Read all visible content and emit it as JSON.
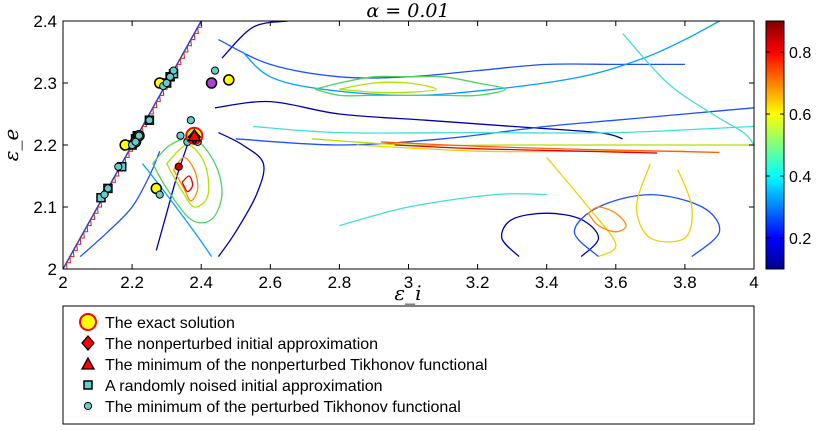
{
  "chart_data": {
    "type": "contour",
    "title": "α = 0.01",
    "xlabel": "ε_i",
    "ylabel": "ε_e",
    "xlim": [
      2,
      4
    ],
    "ylim": [
      2,
      2.4
    ],
    "xticks": [
      "2",
      "2.2",
      "2.4",
      "2.6",
      "2.8",
      "3",
      "3.2",
      "3.4",
      "3.6",
      "3.8",
      "4"
    ],
    "yticks": [
      "2",
      "2.1",
      "2.2",
      "2.3",
      "2.4"
    ],
    "colorbar": {
      "range": [
        0.1,
        0.9
      ],
      "ticks": [
        "0.2",
        "0.4",
        "0.6",
        "0.8"
      ],
      "colormap": "jet"
    },
    "contours": [
      {
        "level": 0.1,
        "color": "#0000b0",
        "points": [
          [
            2.27,
            2.03
          ],
          [
            2.3,
            2.09
          ],
          [
            2.33,
            2.15
          ],
          [
            2.36,
            2.2
          ]
        ]
      },
      {
        "level": 0.1,
        "color": "#0000b0",
        "points": [
          [
            2.45,
            2.02
          ],
          [
            2.5,
            2.06
          ],
          [
            2.56,
            2.12
          ],
          [
            2.58,
            2.17
          ],
          [
            2.52,
            2.2
          ],
          [
            2.45,
            2.22
          ]
        ]
      },
      {
        "level": 0.1,
        "color": "#0000b0",
        "points": [
          [
            2.46,
            2.34
          ],
          [
            2.55,
            2.39
          ],
          [
            2.65,
            2.4
          ]
        ]
      },
      {
        "level": 0.1,
        "color": "#0000b0",
        "points": [
          [
            2.44,
            2.26
          ],
          [
            2.6,
            2.27
          ],
          [
            2.8,
            2.25
          ],
          [
            3.05,
            2.24
          ],
          [
            3.3,
            2.23
          ],
          [
            3.55,
            2.22
          ],
          [
            3.62,
            2.21
          ]
        ]
      },
      {
        "level": 0.1,
        "color": "#0000b0",
        "points": [
          [
            3.32,
            2.02
          ],
          [
            3.27,
            2.05
          ],
          [
            3.3,
            2.08
          ],
          [
            3.4,
            2.09
          ],
          [
            3.5,
            2.08
          ],
          [
            3.55,
            2.05
          ],
          [
            3.5,
            2.02
          ]
        ]
      },
      {
        "level": 0.2,
        "color": "#1e50ff",
        "points": [
          [
            2.05,
            2.02
          ],
          [
            2.13,
            2.06
          ],
          [
            2.2,
            2.1
          ],
          [
            2.25,
            2.15
          ],
          [
            2.28,
            2.19
          ]
        ]
      },
      {
        "level": 0.2,
        "color": "#1e50ff",
        "points": [
          [
            2.45,
            2.37
          ],
          [
            2.6,
            2.33
          ],
          [
            2.8,
            2.31
          ],
          [
            3.0,
            2.31
          ],
          [
            3.2,
            2.32
          ],
          [
            3.4,
            2.33
          ],
          [
            3.6,
            2.33
          ],
          [
            3.8,
            2.33
          ]
        ]
      },
      {
        "level": 0.2,
        "color": "#1e50ff",
        "points": [
          [
            2.5,
            2.21
          ],
          [
            2.8,
            2.2
          ],
          [
            3.1,
            2.21
          ],
          [
            3.4,
            2.23
          ],
          [
            3.6,
            2.24
          ],
          [
            3.8,
            2.25
          ],
          [
            4.0,
            2.26
          ]
        ]
      },
      {
        "level": 0.2,
        "color": "#1e50ff",
        "points": [
          [
            3.55,
            2.02
          ],
          [
            3.48,
            2.06
          ],
          [
            3.55,
            2.1
          ],
          [
            3.7,
            2.12
          ],
          [
            3.85,
            2.1
          ],
          [
            3.9,
            2.06
          ],
          [
            3.82,
            2.02
          ]
        ]
      },
      {
        "level": 0.3,
        "color": "#00a0ff",
        "points": [
          [
            2.23,
            2.17
          ],
          [
            2.3,
            2.12
          ],
          [
            2.38,
            2.06
          ],
          [
            2.43,
            2.02
          ]
        ]
      },
      {
        "level": 0.3,
        "color": "#00a0ff",
        "points": [
          [
            2.52,
            2.35
          ],
          [
            2.6,
            2.31
          ],
          [
            2.75,
            2.29
          ],
          [
            3.0,
            2.28
          ],
          [
            3.25,
            2.29
          ],
          [
            3.5,
            2.31
          ],
          [
            3.68,
            2.34
          ],
          [
            3.8,
            2.37
          ],
          [
            3.9,
            2.4
          ]
        ]
      },
      {
        "level": 0.35,
        "color": "#40e0d0",
        "points": [
          [
            2.55,
            2.23
          ],
          [
            2.8,
            2.22
          ],
          [
            3.2,
            2.22
          ],
          [
            3.6,
            2.22
          ],
          [
            4.0,
            2.23
          ]
        ]
      },
      {
        "level": 0.35,
        "color": "#40e0d0",
        "points": [
          [
            3.62,
            2.38
          ],
          [
            3.75,
            2.3
          ],
          [
            3.88,
            2.25
          ],
          [
            3.97,
            2.22
          ],
          [
            4.0,
            2.2
          ]
        ]
      },
      {
        "level": 0.35,
        "color": "#40e0d0",
        "points": [
          [
            2.8,
            2.07
          ],
          [
            3.0,
            2.1
          ],
          [
            3.25,
            2.12
          ],
          [
            3.4,
            2.12
          ]
        ]
      },
      {
        "level": 0.45,
        "color": "#50d060",
        "points": [
          [
            2.26,
            2.17
          ],
          [
            2.3,
            2.13
          ],
          [
            2.37,
            2.08
          ],
          [
            2.43,
            2.08
          ],
          [
            2.46,
            2.12
          ],
          [
            2.44,
            2.17
          ],
          [
            2.38,
            2.21
          ],
          [
            2.31,
            2.2
          ],
          [
            2.26,
            2.17
          ]
        ]
      },
      {
        "level": 0.45,
        "color": "#50d060",
        "points": [
          [
            2.73,
            2.29
          ],
          [
            2.8,
            2.28
          ],
          [
            2.9,
            2.28
          ],
          [
            3.0,
            2.28
          ],
          [
            3.1,
            2.28
          ],
          [
            3.2,
            2.28
          ],
          [
            3.28,
            2.29
          ],
          [
            3.2,
            2.3
          ],
          [
            3.1,
            2.31
          ],
          [
            3.0,
            2.31
          ],
          [
            2.9,
            2.31
          ],
          [
            2.8,
            2.3
          ],
          [
            2.73,
            2.29
          ]
        ]
      },
      {
        "level": 0.55,
        "color": "#b0e000",
        "points": [
          [
            2.8,
            2.29
          ],
          [
            2.9,
            2.285
          ],
          [
            3.0,
            2.285
          ],
          [
            3.08,
            2.29
          ],
          [
            3.0,
            2.3
          ],
          [
            2.9,
            2.3
          ],
          [
            2.8,
            2.29
          ]
        ]
      },
      {
        "level": 0.55,
        "color": "#b0e000",
        "points": [
          [
            2.3,
            2.17
          ],
          [
            2.34,
            2.13
          ],
          [
            2.38,
            2.1
          ],
          [
            2.42,
            2.12
          ],
          [
            2.41,
            2.17
          ],
          [
            2.36,
            2.2
          ],
          [
            2.3,
            2.17
          ]
        ]
      },
      {
        "level": 0.55,
        "color": "#b0e000",
        "points": [
          [
            2.72,
            2.21
          ],
          [
            3.0,
            2.2
          ],
          [
            3.3,
            2.2
          ],
          [
            3.6,
            2.2
          ],
          [
            3.9,
            2.2
          ],
          [
            4.0,
            2.2
          ]
        ]
      },
      {
        "level": 0.6,
        "color": "#f0d000",
        "points": [
          [
            2.85,
            2.2
          ],
          [
            3.2,
            2.19
          ],
          [
            3.5,
            2.19
          ],
          [
            3.8,
            2.19
          ]
        ]
      },
      {
        "level": 0.6,
        "color": "#f0d000",
        "points": [
          [
            3.4,
            2.18
          ],
          [
            3.52,
            2.1
          ],
          [
            3.6,
            2.04
          ],
          [
            3.55,
            2.02
          ]
        ]
      },
      {
        "level": 0.6,
        "color": "#f0d000",
        "points": [
          [
            3.7,
            2.17
          ],
          [
            3.66,
            2.1
          ],
          [
            3.7,
            2.05
          ],
          [
            3.8,
            2.05
          ],
          [
            3.82,
            2.1
          ],
          [
            3.78,
            2.16
          ]
        ]
      },
      {
        "level": 0.7,
        "color": "#ff8c00",
        "points": [
          [
            2.32,
            2.16
          ],
          [
            2.35,
            2.13
          ],
          [
            2.37,
            2.11
          ],
          [
            2.39,
            2.13
          ],
          [
            2.38,
            2.16
          ],
          [
            2.35,
            2.18
          ],
          [
            2.32,
            2.16
          ]
        ]
      },
      {
        "level": 0.7,
        "color": "#ff8c00",
        "points": [
          [
            3.52,
            2.09
          ],
          [
            3.55,
            2.07
          ],
          [
            3.6,
            2.06
          ],
          [
            3.63,
            2.07
          ],
          [
            3.6,
            2.09
          ],
          [
            3.55,
            2.1
          ],
          [
            3.52,
            2.09
          ]
        ]
      },
      {
        "level": 0.75,
        "color": "#ff6000",
        "points": [
          [
            2.92,
            2.205
          ],
          [
            3.2,
            2.198
          ],
          [
            3.5,
            2.193
          ],
          [
            3.75,
            2.19
          ],
          [
            3.9,
            2.188
          ]
        ]
      },
      {
        "level": 0.85,
        "color": "#e00000",
        "points": [
          [
            2.96,
            2.2
          ],
          [
            3.2,
            2.194
          ],
          [
            3.5,
            2.19
          ],
          [
            3.72,
            2.187
          ]
        ]
      },
      {
        "level": 0.85,
        "color": "#e00000",
        "points": [
          [
            2.345,
            2.14
          ],
          [
            2.36,
            2.125
          ],
          [
            2.375,
            2.135
          ],
          [
            2.365,
            2.15
          ],
          [
            2.345,
            2.14
          ]
        ]
      }
    ],
    "feasible_boundary": {
      "points": [
        [
          2.0,
          2.0
        ],
        [
          2.4,
          2.4
        ]
      ],
      "color": "#2244cc"
    },
    "series": [
      {
        "name": "The exact solution",
        "marker": "circle",
        "fill": "#ffff00",
        "edge": "#ff0000",
        "points": [
          [
            2.38,
            2.215
          ]
        ]
      },
      {
        "name": "The nonperturbed initial approximation",
        "marker": "diamond",
        "fill": "#ff0000",
        "edge": "#000000",
        "points": [
          [
            2.38,
            2.213
          ]
        ]
      },
      {
        "name": "The minimum of the nonperturbed  Tikhonov functional",
        "marker": "triangle",
        "fill": "#ff0000",
        "edge": "#000000",
        "points": [
          [
            2.38,
            2.215
          ]
        ]
      },
      {
        "name": "A randomly noised initial approximation",
        "marker": "square",
        "fill": "#66cccc",
        "edge": "#000000",
        "points": [
          [
            2.11,
            2.115
          ],
          [
            2.13,
            2.13
          ],
          [
            2.17,
            2.165
          ],
          [
            2.2,
            2.2
          ],
          [
            2.21,
            2.21
          ],
          [
            2.215,
            2.215
          ],
          [
            2.25,
            2.24
          ],
          [
            2.3,
            2.3
          ],
          [
            2.31,
            2.31
          ],
          [
            2.32,
            2.315
          ]
        ]
      },
      {
        "name": "The minimum of the perturbed Tikhonov functional",
        "marker": "circle-small",
        "fill": "#66cccc",
        "edge": "#000000",
        "points": [
          [
            2.12,
            2.12
          ],
          [
            2.13,
            2.13
          ],
          [
            2.16,
            2.165
          ],
          [
            2.2,
            2.2
          ],
          [
            2.21,
            2.205
          ],
          [
            2.22,
            2.215
          ],
          [
            2.25,
            2.24
          ],
          [
            2.29,
            2.295
          ],
          [
            2.3,
            2.3
          ],
          [
            2.31,
            2.31
          ],
          [
            2.32,
            2.32
          ],
          [
            2.34,
            2.215
          ],
          [
            2.36,
            2.205
          ],
          [
            2.37,
            2.24
          ],
          [
            2.39,
            2.205
          ],
          [
            2.44,
            2.32
          ],
          [
            2.28,
            2.12
          ]
        ]
      },
      {
        "name": "",
        "marker": "circle",
        "fill": "#ffff00",
        "edge": "#000000",
        "points": [
          [
            2.18,
            2.2
          ],
          [
            2.21,
            2.205
          ],
          [
            2.22,
            2.215
          ],
          [
            2.28,
            2.3
          ],
          [
            2.27,
            2.13
          ],
          [
            2.48,
            2.305
          ]
        ]
      },
      {
        "name": "",
        "marker": "circle",
        "fill": "#aa44cc",
        "edge": "#000000",
        "points": [
          [
            2.43,
            2.3
          ]
        ]
      },
      {
        "name": "",
        "marker": "circle-small",
        "fill": "#cc0000",
        "edge": "#000000",
        "points": [
          [
            2.335,
            2.165
          ]
        ]
      }
    ],
    "legend": {
      "placement": "bottom",
      "entries": [
        "The exact solution",
        "The nonperturbed initial approximation",
        "The minimum of the nonperturbed  Tikhonov functional",
        "A randomly noised initial approximation",
        "The minimum of the perturbed Tikhonov functional"
      ]
    }
  },
  "colors": {
    "axis": "#000000",
    "background": "#ffffff"
  }
}
